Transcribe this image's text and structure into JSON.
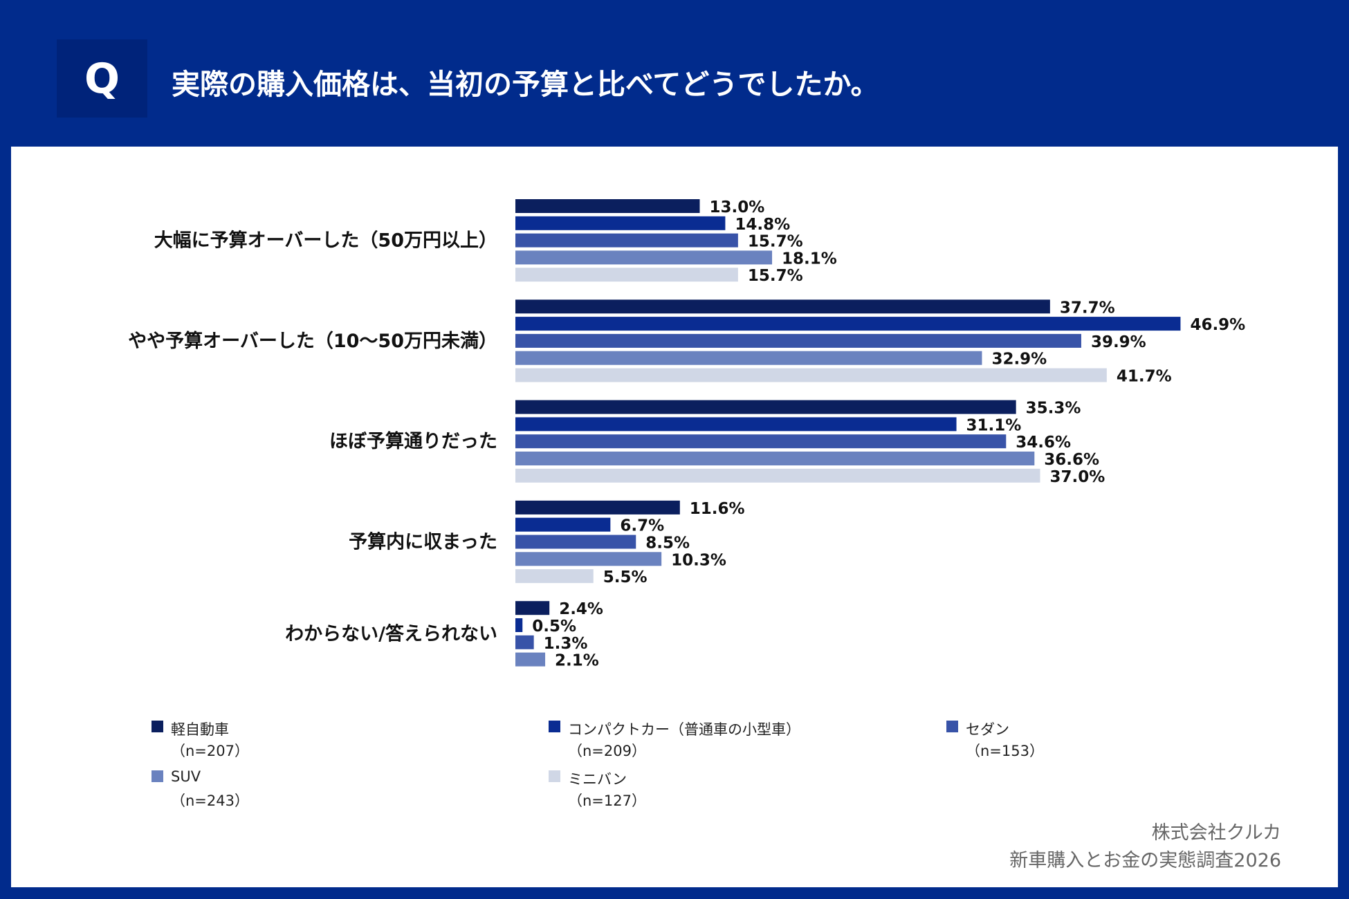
{
  "header": {
    "q_label": "Q",
    "title": "実際の購入価格は、当初の予算と比べてどうでしたか。"
  },
  "chart_data": {
    "type": "bar",
    "orientation": "horizontal",
    "categories": [
      "大幅に予算オーバーした（50万円以上）",
      "やや予算オーバーした（10〜50万円未満）",
      "ほぼ予算通りだった",
      "予算内に収まった",
      "わからない/答えられない"
    ],
    "series": [
      {
        "name": "軽自動車",
        "n": "（n=207）",
        "color": "#0b1f5e",
        "values": [
          13.0,
          37.7,
          35.3,
          11.6,
          2.4
        ]
      },
      {
        "name": "コンパクトカー（普通車の小型車）",
        "n": "（n=209）",
        "color": "#0a2c92",
        "values": [
          14.8,
          46.9,
          31.1,
          6.7,
          0.5
        ]
      },
      {
        "name": "セダン",
        "n": "（n=153）",
        "color": "#3853a8",
        "values": [
          15.7,
          39.9,
          34.6,
          8.5,
          1.3
        ]
      },
      {
        "name": "SUV",
        "n": "（n=243）",
        "color": "#6a82bf",
        "values": [
          18.1,
          32.9,
          36.6,
          10.3,
          2.1
        ]
      },
      {
        "name": "ミニバン",
        "n": "（n=127）",
        "color": "#d0d7e6",
        "values": [
          15.7,
          41.7,
          37.0,
          5.5,
          null
        ]
      }
    ],
    "value_suffix": "%",
    "legend_position": "bottom",
    "grid": false
  },
  "footer": {
    "company": "株式会社クルカ",
    "survey": "新車購入とお金の実態調査2026"
  }
}
